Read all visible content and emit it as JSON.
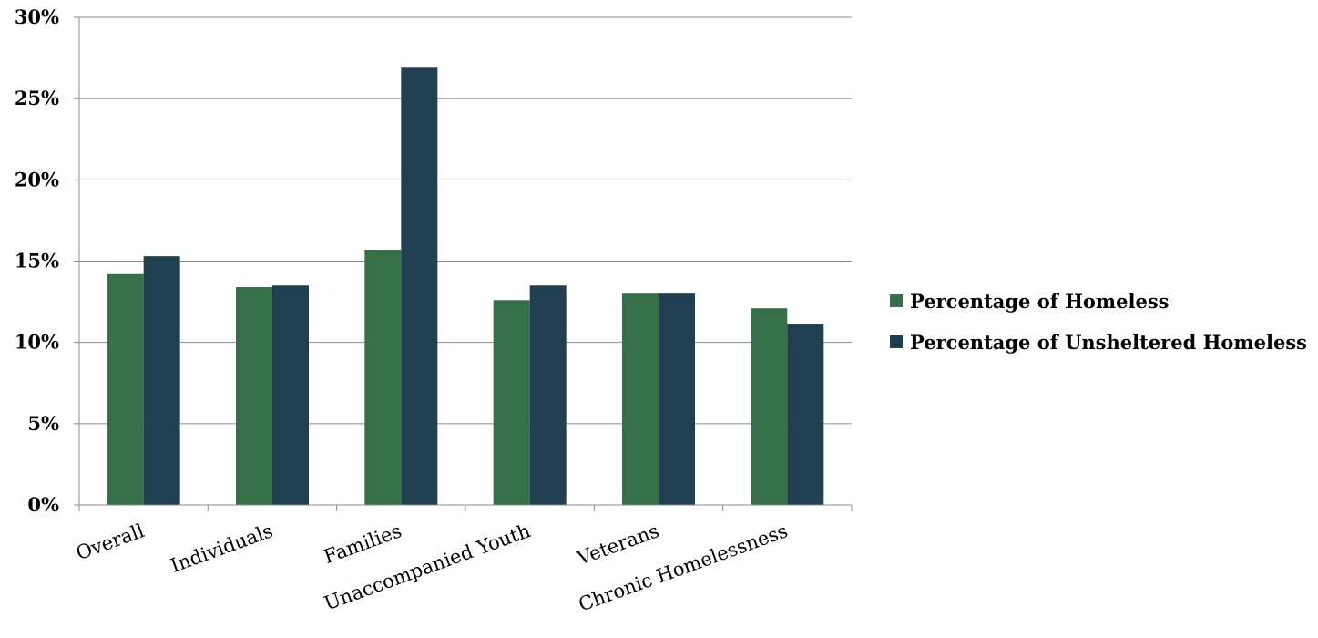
{
  "chart_data": {
    "type": "bar",
    "categories": [
      "Overall",
      "Individuals",
      "Families",
      "Unaccompanied Youth",
      "Veterans",
      "Chronic Homelessness"
    ],
    "series": [
      {
        "name": "Percentage of Homeless",
        "values": [
          14.2,
          13.4,
          15.7,
          12.6,
          13.0,
          12.1
        ],
        "color": "#357049"
      },
      {
        "name": "Percentage of Unsheltered Homeless",
        "values": [
          15.3,
          13.5,
          26.9,
          13.5,
          13.0,
          11.1
        ],
        "color": "#203f50"
      }
    ],
    "ylim": [
      0,
      30
    ],
    "yticks": [
      0,
      5,
      10,
      15,
      20,
      25,
      30
    ],
    "ytick_labels": [
      "0%",
      "5%",
      "10%",
      "15%",
      "20%",
      "25%",
      "30%"
    ],
    "grid": true,
    "legend_position": "right"
  }
}
